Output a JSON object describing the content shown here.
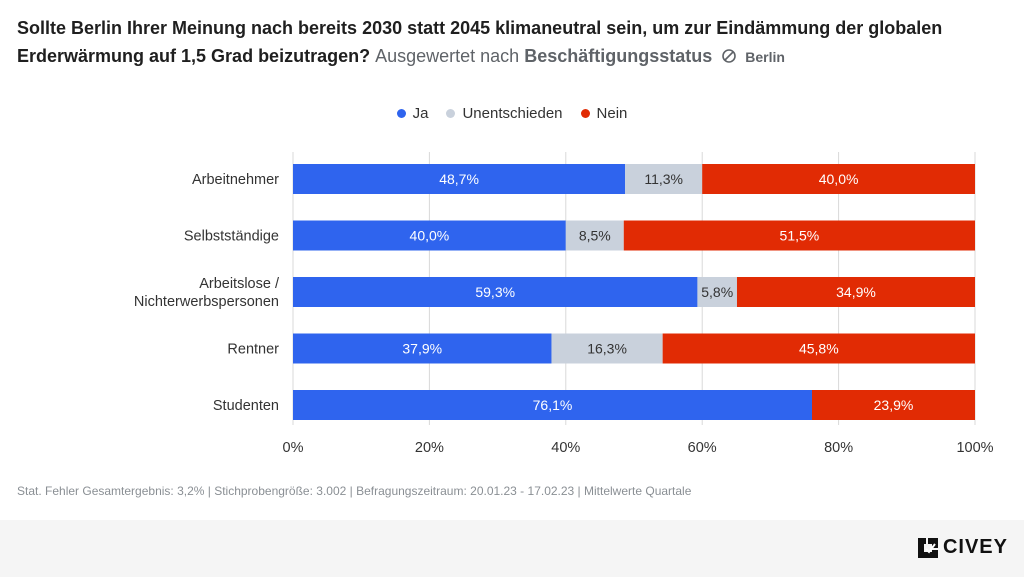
{
  "header": {
    "question": "Sollte Berlin Ihrer Meinung nach bereits 2030 statt 2045 klimaneutral sein, um zur Eindämmung der globalen Erderwärmung auf 1,5 Grad beizutragen?",
    "evaluated_prefix": "Ausgewertet nach",
    "evaluated_by": "Beschäftigungsstatus",
    "region": "Berlin"
  },
  "chart_data": {
    "type": "bar",
    "orientation": "horizontal",
    "stacked": true,
    "categories": [
      "Arbeitnehmer",
      "Selbstständige",
      "Arbeitslose / Nichterwerbspersonen",
      "Rentner",
      "Studenten"
    ],
    "series": [
      {
        "name": "Ja",
        "color": "#2f64ee",
        "values": [
          48.7,
          40.0,
          59.3,
          37.9,
          76.1
        ],
        "labels": [
          "48,7%",
          "40,0%",
          "59,3%",
          "37,9%",
          "76,1%"
        ]
      },
      {
        "name": "Unentschieden",
        "color": "#c9d1dc",
        "values": [
          11.3,
          8.5,
          5.8,
          16.3,
          0
        ],
        "labels": [
          "11,3%",
          "8,5%",
          "5,8%",
          "16,3%",
          ""
        ]
      },
      {
        "name": "Nein",
        "color": "#e12b04",
        "values": [
          40.0,
          51.5,
          34.9,
          45.8,
          23.9
        ],
        "labels": [
          "40,0%",
          "51,5%",
          "34,9%",
          "45,8%",
          "23,9%"
        ]
      }
    ],
    "xlim": [
      0,
      100
    ],
    "xticks": [
      "0%",
      "20%",
      "40%",
      "60%",
      "80%",
      "100%"
    ],
    "grid": true,
    "legend_position": "top"
  },
  "footnote": "Stat. Fehler Gesamtergebnis: 3,2% | Stichprobengröße: 3.002 | Befragungszeitraum: 20.01.23 - 17.02.23 | Mittelwerte Quartale",
  "brand": "CIVEY"
}
